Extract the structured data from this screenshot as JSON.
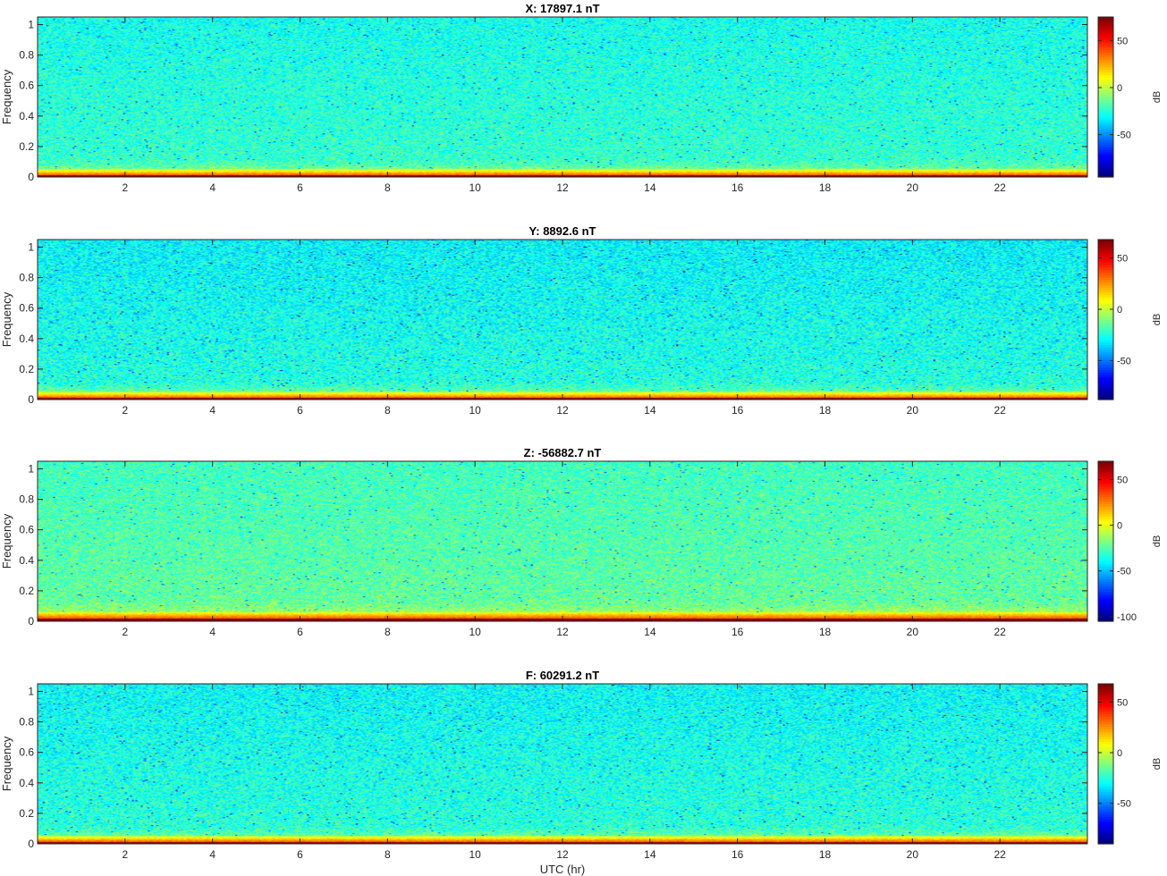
{
  "chart_data": [
    {
      "type": "heatmap",
      "title": "X: 17897.1 nT",
      "xlabel": "",
      "ylabel": "Frequency",
      "xlim": [
        0,
        24
      ],
      "ylim": [
        0,
        1.05
      ],
      "xticks": [
        2,
        4,
        6,
        8,
        10,
        12,
        14,
        16,
        18,
        20,
        22
      ],
      "yticks": [
        0,
        0.2,
        0.4,
        0.6,
        0.8,
        1
      ],
      "colorbar": {
        "label": "dB",
        "range": [
          -95,
          75
        ],
        "ticks": [
          -50,
          0,
          50
        ]
      },
      "colormap": "jet",
      "background_db": -22,
      "low_freq_band": {
        "max_freq": 0.05,
        "db_at_zero": 75
      },
      "grid": false
    },
    {
      "type": "heatmap",
      "title": "Y: 8892.6 nT",
      "xlabel": "",
      "ylabel": "Frequency",
      "xlim": [
        0,
        24
      ],
      "ylim": [
        0,
        1.05
      ],
      "xticks": [
        2,
        4,
        6,
        8,
        10,
        12,
        14,
        16,
        18,
        20,
        22
      ],
      "yticks": [
        0,
        0.2,
        0.4,
        0.6,
        0.8,
        1
      ],
      "colorbar": {
        "label": "dB",
        "range": [
          -88,
          68
        ],
        "ticks": [
          -50,
          0,
          50
        ]
      },
      "colormap": "jet",
      "background_db": -24,
      "low_freq_band": {
        "max_freq": 0.05,
        "db_at_zero": 68
      },
      "grid": false
    },
    {
      "type": "heatmap",
      "title": "Z: -56882.7 nT",
      "xlabel": "",
      "ylabel": "Frequency",
      "xlim": [
        0,
        24
      ],
      "ylim": [
        0,
        1.05
      ],
      "xticks": [
        2,
        4,
        6,
        8,
        10,
        12,
        14,
        16,
        18,
        20,
        22
      ],
      "yticks": [
        0,
        0.2,
        0.4,
        0.6,
        0.8,
        1
      ],
      "colorbar": {
        "label": "dB",
        "range": [
          -105,
          70
        ],
        "ticks": [
          -100,
          -50,
          0,
          50
        ]
      },
      "colormap": "jet",
      "background_db": -22,
      "low_freq_band": {
        "max_freq": 0.06,
        "db_at_zero": 70
      },
      "grid": false
    },
    {
      "type": "heatmap",
      "title": "F: 60291.2 nT",
      "xlabel": "UTC (hr)",
      "ylabel": "Frequency",
      "xlim": [
        0,
        24
      ],
      "ylim": [
        0,
        1.05
      ],
      "xticks": [
        2,
        4,
        6,
        8,
        10,
        12,
        14,
        16,
        18,
        20,
        22
      ],
      "yticks": [
        0,
        0.2,
        0.4,
        0.6,
        0.8,
        1
      ],
      "colorbar": {
        "label": "dB",
        "range": [
          -90,
          68
        ],
        "ticks": [
          -50,
          0,
          50
        ]
      },
      "colormap": "jet",
      "background_db": -24,
      "low_freq_band": {
        "max_freq": 0.05,
        "db_at_zero": 68
      },
      "grid": false
    }
  ]
}
